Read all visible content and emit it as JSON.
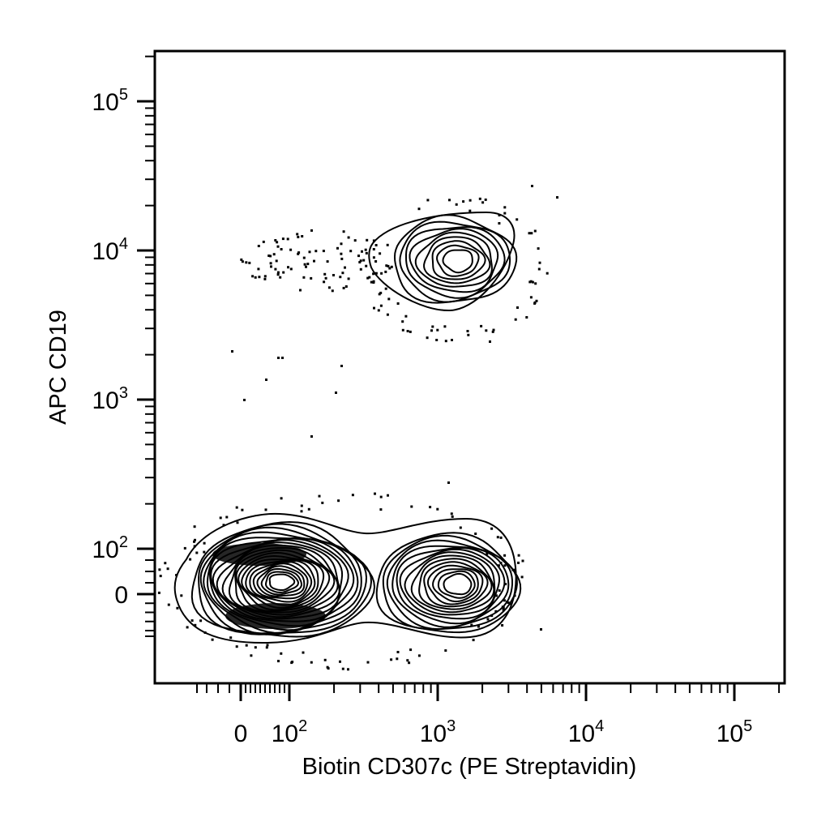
{
  "chart_data": {
    "type": "contour",
    "xlabel": "Biotin CD307c (PE Streptavidin)",
    "ylabel": "APC CD19",
    "x_scale": "biexponential",
    "y_scale": "biexponential",
    "xlim": [
      -40,
      250000
    ],
    "ylim": [
      -120,
      330000
    ],
    "x_ticks": [
      {
        "value": 0,
        "label": "0"
      },
      {
        "value": 100,
        "base": "10",
        "exp": "2"
      },
      {
        "value": 1000,
        "base": "10",
        "exp": "3"
      },
      {
        "value": 10000,
        "base": "10",
        "exp": "4"
      },
      {
        "value": 100000,
        "base": "10",
        "exp": "5"
      }
    ],
    "y_ticks": [
      {
        "value": 0,
        "label": "0"
      },
      {
        "value": 100,
        "base": "10",
        "exp": "2"
      },
      {
        "value": 1000,
        "base": "10",
        "exp": "3"
      },
      {
        "value": 10000,
        "base": "10",
        "exp": "4"
      },
      {
        "value": 100000,
        "base": "10",
        "exp": "5"
      }
    ],
    "populations": [
      {
        "x_center": 40,
        "y_center": 0,
        "density": "high",
        "levels": 22
      },
      {
        "x_center": 1400,
        "y_center": 0,
        "density": "medium",
        "levels": 14
      },
      {
        "x_center": 1400,
        "y_center": 9000,
        "density": "medium",
        "levels": 10
      }
    ],
    "grid": false,
    "legend": "none",
    "color": "#000000"
  }
}
